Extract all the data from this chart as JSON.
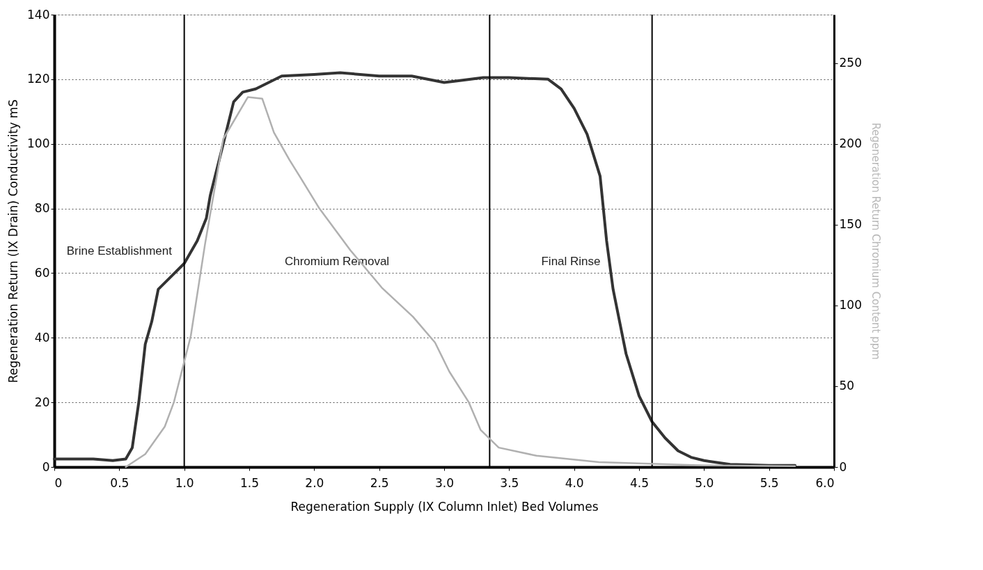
{
  "chart_data": {
    "type": "line",
    "xlabel": "Regeneration Supply (IX Column Inlet) Bed Volumes",
    "ylabel": "Regeneration Return (IX Drain) Conductivity mS",
    "y2label": "Regeneration Return Chromium Content ppm",
    "xlim": [
      0,
      6.0
    ],
    "xticks": [
      0,
      0.5,
      {
        "value": 1,
        "label": "1.0"
      },
      1.5,
      {
        "value": 2,
        "label": "2.0"
      },
      2.5,
      {
        "value": 3,
        "label": "3.0"
      },
      3.5,
      {
        "value": 4,
        "label": "4.0"
      },
      4.5,
      {
        "value": 5,
        "label": "5.0"
      },
      5.5,
      {
        "value": 6,
        "label": "6.0"
      }
    ],
    "ylim": [
      0,
      140
    ],
    "yticks": [
      0,
      20,
      40,
      60,
      80,
      100,
      120,
      140
    ],
    "y2lim": [
      0,
      280
    ],
    "y2ticks": [
      0,
      50,
      100,
      150,
      200,
      250
    ],
    "grid": "y",
    "line_style": "solid",
    "series": [
      {
        "color": "#333333",
        "x": [
          0,
          0.3,
          0.45,
          0.55,
          0.6,
          0.65,
          0.7,
          0.75,
          0.8,
          0.9,
          1.0,
          1.1,
          1.17,
          1.2,
          1.3,
          1.38,
          1.45,
          1.55,
          1.65,
          1.75,
          2.0,
          2.2,
          2.5,
          2.75,
          3.0,
          3.1,
          3.3,
          3.5,
          3.8,
          3.9,
          4.0,
          4.1,
          4.2,
          4.25,
          4.3,
          4.35,
          4.4,
          4.5,
          4.6,
          4.7,
          4.8,
          4.9,
          5.0,
          5.2,
          5.5,
          5.7
        ],
        "values": [
          2.5,
          2.5,
          2,
          2.5,
          6,
          20,
          38,
          45,
          55,
          59,
          63,
          70,
          77,
          84,
          100,
          113,
          116,
          117,
          119,
          121,
          121.5,
          122,
          121,
          121,
          119,
          119.5,
          120.5,
          120.5,
          120,
          117,
          111,
          103,
          90,
          70,
          55,
          45,
          35,
          22,
          14,
          9,
          5,
          3,
          2,
          0.8,
          0.5,
          0.5
        ]
      },
      {
        "color": "#b0b0b0",
        "axis": "y2",
        "x": [
          0.55,
          0.7,
          0.85,
          0.92,
          1.05,
          1.16,
          1.3,
          1.49,
          1.6,
          1.69,
          1.81,
          1.88,
          2.04,
          2.28,
          2.52,
          2.76,
          2.93,
          3.04,
          3.19,
          3.28,
          3.42,
          3.71,
          4.19,
          5.0,
          5.7
        ],
        "values": [
          0,
          8,
          25,
          40,
          81,
          138,
          203,
          229,
          228,
          207,
          190,
          181,
          160,
          134,
          111,
          93,
          77,
          59,
          40,
          23,
          12,
          7,
          3,
          1,
          0.5
        ]
      }
    ],
    "ref_lines": [
      {
        "axis": "x",
        "value": 1.0,
        "color": "#000000"
      },
      {
        "axis": "x",
        "value": 3.35,
        "color": "#000000"
      },
      {
        "axis": "x",
        "value": 4.6,
        "color": "#000000"
      }
    ],
    "annotations": [
      "Brine Establishment",
      "Chromium Removal",
      "Final Rinse"
    ]
  }
}
